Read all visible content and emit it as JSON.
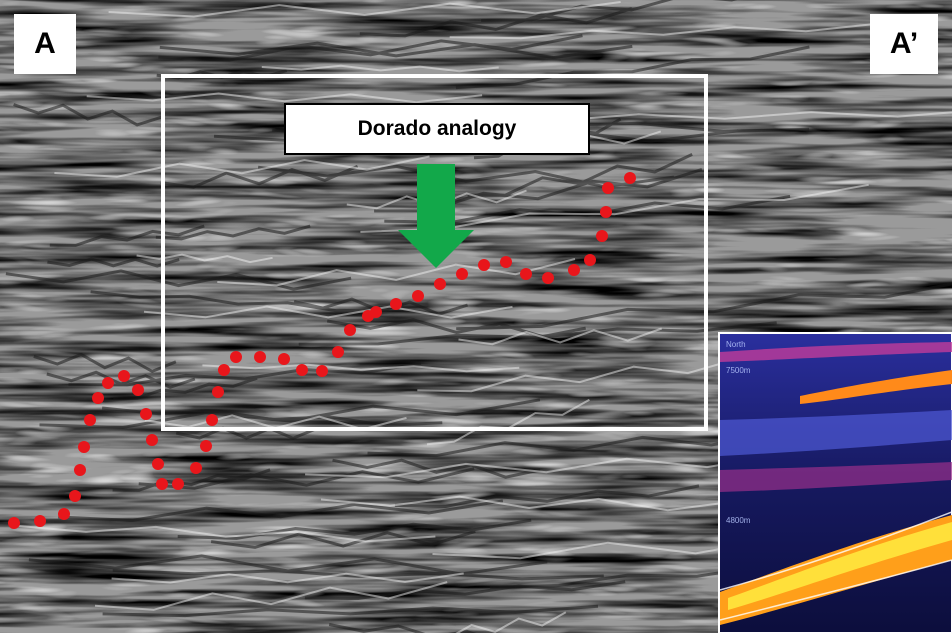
{
  "labels": {
    "section_start": "A",
    "section_end": "A’"
  },
  "callout": {
    "text": "Dorado analogy"
  },
  "inset": {
    "title": "North",
    "depth_top": "7500m",
    "depth_mid": "4800m"
  },
  "colors": {
    "dotted_line": "#e8161b",
    "arrow": "#12a84a",
    "frame": "#ffffff",
    "inset_background": "#1a1f8c"
  }
}
